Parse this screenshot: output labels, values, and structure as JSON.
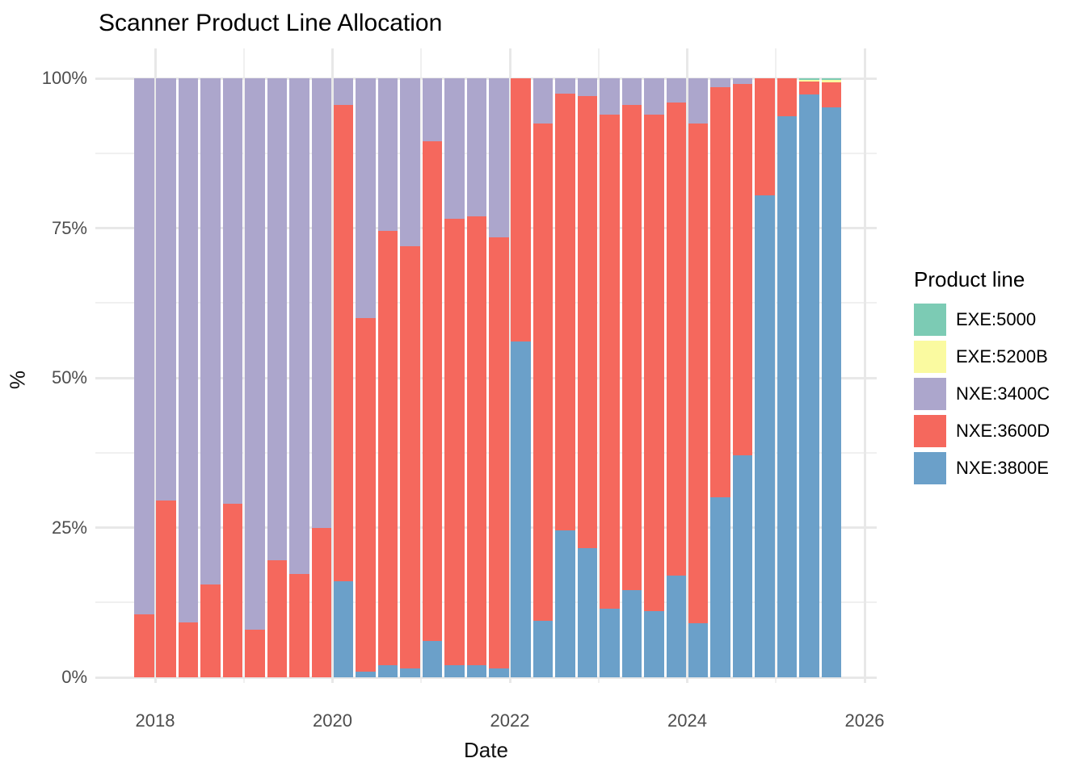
{
  "title": "Scanner Product Line Allocation",
  "axes": {
    "x_title": "Date",
    "y_title": "%"
  },
  "legend": {
    "title": "Product line"
  },
  "chart_data": {
    "type": "bar",
    "stacked": true,
    "normalized_to_100_percent": true,
    "title": "Scanner Product Line Allocation",
    "xlabel": "Date",
    "ylabel": "%",
    "ylim": [
      0,
      100
    ],
    "y_tick_labels": [
      "0%",
      "25%",
      "50%",
      "75%",
      "100%"
    ],
    "y_tick_values": [
      0,
      25,
      50,
      75,
      100
    ],
    "y_minor_tick_values": [
      12.5,
      37.5,
      62.5,
      87.5
    ],
    "x_tick_labels": [
      "2018",
      "2020",
      "2022",
      "2024",
      "2026"
    ],
    "x_tick_years": [
      2018,
      2020,
      2022,
      2024,
      2026
    ],
    "x_minor_tick_years": [
      2019,
      2021,
      2023,
      2025
    ],
    "grid": true,
    "legend_title": "Product line",
    "legend_position": "right",
    "categories": [
      "2017 Q4",
      "2018 Q1",
      "2018 Q2",
      "2018 Q3",
      "2018 Q4",
      "2019 Q1",
      "2019 Q2",
      "2019 Q3",
      "2019 Q4",
      "2020 Q1",
      "2020 Q2",
      "2020 Q3",
      "2020 Q4",
      "2021 Q1",
      "2021 Q2",
      "2021 Q3",
      "2021 Q4",
      "2022 Q1",
      "2022 Q2",
      "2022 Q3",
      "2022 Q4",
      "2023 Q1",
      "2023 Q2",
      "2023 Q3",
      "2023 Q4",
      "2024 Q1",
      "2024 Q2",
      "2024 Q3",
      "2024 Q4",
      "2025 Q1",
      "2025 Q2",
      "2025 Q3"
    ],
    "series": [
      {
        "name": "EXE:5000",
        "color": "#7ccbb4",
        "values": [
          0,
          0,
          0,
          0,
          0,
          0,
          0,
          0,
          0,
          0,
          0,
          0,
          0,
          0,
          0,
          0,
          0,
          0,
          0,
          0,
          0,
          0,
          0,
          0,
          0,
          0,
          0,
          0,
          0,
          0,
          0.25,
          0.3
        ]
      },
      {
        "name": "EXE:5200B",
        "color": "#fafaa0",
        "values": [
          0,
          0,
          0,
          0,
          0,
          0,
          0,
          0,
          0,
          0,
          0,
          0,
          0,
          0,
          0,
          0,
          0,
          0,
          0,
          0,
          0,
          0,
          0,
          0,
          0,
          0,
          0,
          0,
          0,
          0,
          0.35,
          0.4
        ]
      },
      {
        "name": "NXE:3400C",
        "color": "#aca6cc",
        "values": [
          89.5,
          70.5,
          90.8,
          84.5,
          71,
          92,
          80.5,
          82.8,
          75,
          4.5,
          40,
          25.5,
          28,
          10.5,
          23.5,
          23,
          26.5,
          0,
          7.5,
          2.5,
          3,
          6,
          4.5,
          6,
          4,
          7.5,
          1.5,
          1,
          0,
          0,
          0,
          0
        ]
      },
      {
        "name": "NXE:3600D",
        "color": "#f5685d",
        "values": [
          10.5,
          29.5,
          9.2,
          15.5,
          29,
          8,
          19.5,
          17.2,
          25,
          79.5,
          59,
          72.5,
          70.5,
          83.5,
          74.5,
          75,
          72,
          44,
          83,
          73,
          75.5,
          82.5,
          81,
          83,
          79,
          83.5,
          68.5,
          62,
          19.5,
          6.3,
          2.1,
          4.1
        ]
      },
      {
        "name": "NXE:3800E",
        "color": "#6ba0c9",
        "values": [
          0,
          0,
          0,
          0,
          0,
          0,
          0,
          0,
          0,
          16,
          1,
          2,
          1.5,
          6,
          2,
          2,
          1.5,
          56,
          9.5,
          24.5,
          21.5,
          11.5,
          14.5,
          11,
          17,
          9,
          30,
          37,
          80.5,
          93.7,
          97.3,
          95.2
        ]
      }
    ],
    "stack_order_bottom_to_top": [
      "NXE:3800E",
      "NXE:3600D",
      "NXE:3400C",
      "EXE:5200B",
      "EXE:5000"
    ]
  }
}
